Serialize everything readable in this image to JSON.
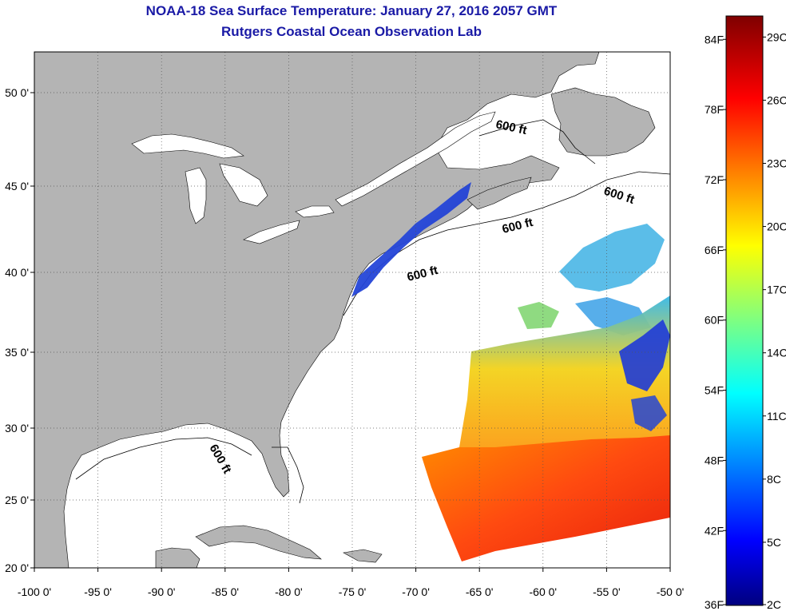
{
  "title": "NOAA-18 Sea Surface Temperature:  January 27, 2016 2057 GMT",
  "subtitle": "Rutgers Coastal Ocean Observation Lab",
  "colors": {
    "title": "#1a1aa6",
    "land": "#b4b4b4",
    "ocean": "#ffffff"
  },
  "map": {
    "lon_range": [
      -100,
      -50
    ],
    "lat_range": [
      20,
      52
    ],
    "x_ticks": [
      "-100 0'",
      "-95 0'",
      "-90 0'",
      "-85 0'",
      "-80 0'",
      "-75 0'",
      "-70 0'",
      "-65 0'",
      "-60 0'",
      "-55 0'",
      "-50 0'"
    ],
    "y_ticks": [
      "20 0'",
      "25 0'",
      "30 0'",
      "35 0'",
      "40 0'",
      "45 0'",
      "50 0'"
    ],
    "isobath_labels": [
      "600 ft",
      "600 ft",
      "600 ft",
      "600 ft",
      "600 ft"
    ],
    "grid": "dotted"
  },
  "colorbar": {
    "f_labels": [
      "84F",
      "78F",
      "72F",
      "66F",
      "60F",
      "54F",
      "48F",
      "42F",
      "36F"
    ],
    "c_labels": [
      "29C",
      "26C",
      "23C",
      "20C",
      "17C",
      "14C",
      "11C",
      "8C",
      "5C",
      "2C"
    ],
    "colormap": "jet"
  }
}
